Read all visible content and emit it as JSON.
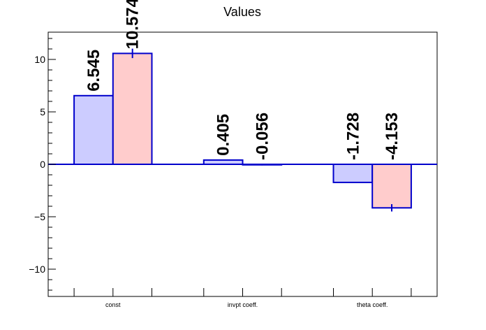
{
  "chart_data": {
    "type": "bar",
    "title": "Values",
    "xlabel": "",
    "ylabel": "",
    "categories": [
      "const",
      "invpt coeff.",
      "theta coeff."
    ],
    "series": [
      {
        "values": [
          6.545,
          0.405,
          -1.728
        ],
        "errors": [
          0,
          0,
          0
        ]
      },
      {
        "values": [
          10.574,
          -0.056,
          -4.153
        ],
        "errors": [
          0.45,
          0.05,
          0.35
        ]
      }
    ],
    "data_labels": [
      [
        "6.545",
        "0.405",
        "-1.728"
      ],
      [
        "10.574",
        "-0.056",
        "-4.153"
      ]
    ],
    "ylim": [
      -12.6,
      12.6
    ],
    "yticks": [
      -10,
      -5,
      0,
      5,
      10
    ],
    "ytick_labels": [
      "−10",
      "−5",
      "0",
      "5",
      "10"
    ],
    "grid": false,
    "colors": {
      "series_fill": [
        "#ccccff",
        "#ffcccc"
      ],
      "outline": "#0000cc",
      "axis": "#000000"
    }
  }
}
